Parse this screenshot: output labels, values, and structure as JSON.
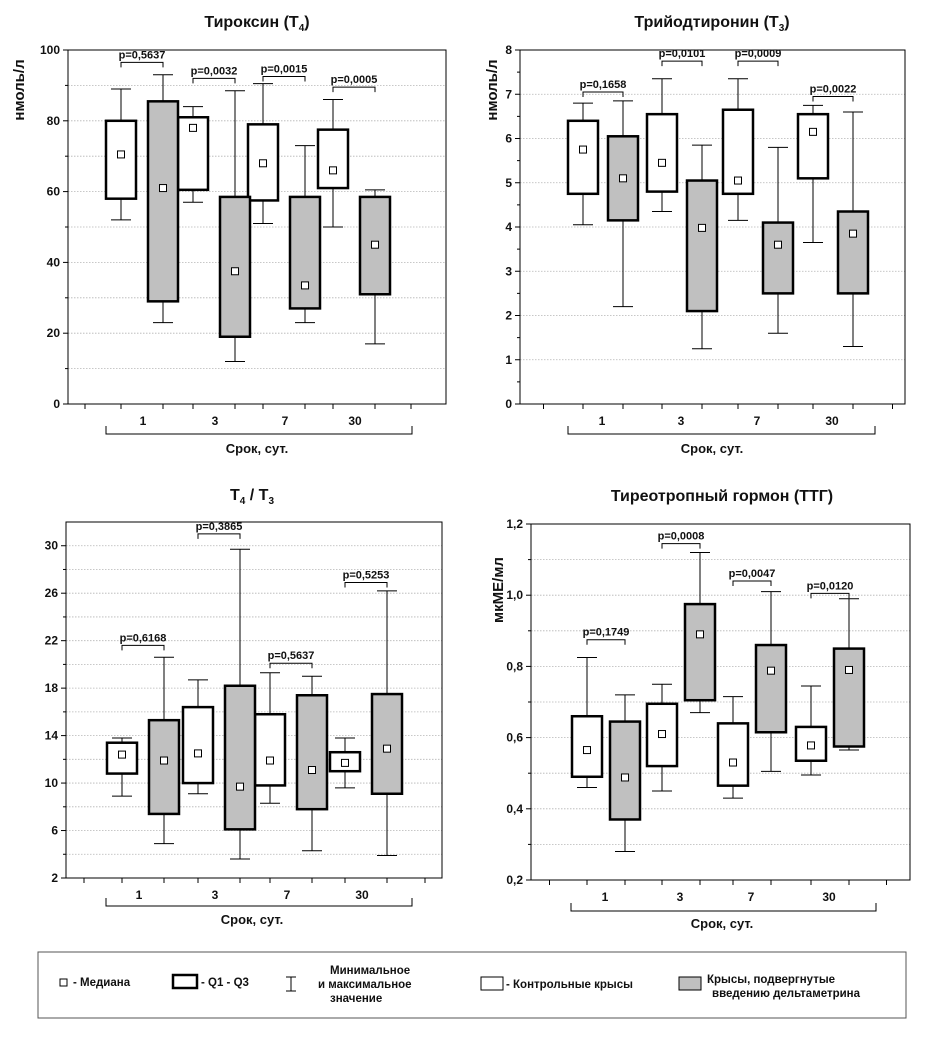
{
  "colors": {
    "control": "#ffffff",
    "treated": "#c0c0c0",
    "stroke": "#000000",
    "grid": "#b5b5b5"
  },
  "chart_data": [
    {
      "type": "box",
      "title": "Тироксин (Т",
      "title_sub": "4",
      "title_tail": ")",
      "ylabel": "нмоль/л",
      "xlabel": "Срок, сут.",
      "categories": [
        "1",
        "3",
        "7",
        "30"
      ],
      "ylim": [
        0,
        100
      ],
      "yticks": [
        0,
        20,
        40,
        60,
        80,
        100
      ],
      "grid": [
        10,
        20,
        30,
        40,
        50,
        60,
        70,
        80,
        90
      ],
      "series": [
        {
          "name": "Контрольные крысы",
          "boxes": [
            {
              "min": 52,
              "q1": 58,
              "median": 70.5,
              "q3": 80,
              "max": 89
            },
            {
              "min": 57,
              "q1": 60.5,
              "median": 78,
              "q3": 81,
              "max": 84
            },
            {
              "min": 51,
              "q1": 57.5,
              "median": 68,
              "q3": 79,
              "max": 90.5
            },
            {
              "min": 50,
              "q1": 61,
              "median": 66,
              "q3": 77.5,
              "max": 86
            }
          ]
        },
        {
          "name": "Крысы, подвергнутые введению дельтаметрина",
          "boxes": [
            {
              "min": 23,
              "q1": 29,
              "median": 61,
              "q3": 85.5,
              "max": 93
            },
            {
              "min": 12,
              "q1": 19,
              "median": 37.5,
              "q3": 58.5,
              "max": 88.5
            },
            {
              "min": 23,
              "q1": 27,
              "median": 33.5,
              "q3": 58.5,
              "max": 73
            },
            {
              "min": 17,
              "q1": 31,
              "median": 45,
              "q3": 58.5,
              "max": 60.5
            }
          ]
        }
      ],
      "pvalues": [
        {
          "label": "p=0,5637",
          "y": 96.5
        },
        {
          "label": "p=0,0032",
          "y": 92
        },
        {
          "label": "p=0,0015",
          "y": 92.5
        },
        {
          "label": "p=0,0005",
          "y": 89.5
        }
      ]
    },
    {
      "type": "box",
      "title": "Трийодтиронин (Т",
      "title_sub": "3",
      "title_tail": ")",
      "ylabel": "нмоль/л",
      "xlabel": "Срок, сут.",
      "categories": [
        "1",
        "3",
        "7",
        "30"
      ],
      "ylim": [
        0,
        8
      ],
      "yticks": [
        0,
        1,
        2,
        3,
        4,
        5,
        6,
        7,
        8
      ],
      "grid": [
        1,
        2,
        3,
        4,
        5,
        6,
        7
      ],
      "series": [
        {
          "name": "Контрольные крысы",
          "boxes": [
            {
              "min": 4.05,
              "q1": 4.75,
              "median": 5.75,
              "q3": 6.4,
              "max": 6.8
            },
            {
              "min": 4.35,
              "q1": 4.8,
              "median": 5.45,
              "q3": 6.55,
              "max": 7.35
            },
            {
              "min": 4.15,
              "q1": 4.75,
              "median": 5.05,
              "q3": 6.65,
              "max": 7.35
            },
            {
              "min": 3.65,
              "q1": 5.1,
              "median": 6.15,
              "q3": 6.55,
              "max": 6.75
            }
          ]
        },
        {
          "name": "Крысы, подвергнутые введению дельтаметрина",
          "boxes": [
            {
              "min": 2.2,
              "q1": 4.15,
              "median": 5.1,
              "q3": 6.05,
              "max": 6.85
            },
            {
              "min": 1.25,
              "q1": 2.1,
              "median": 3.98,
              "q3": 5.05,
              "max": 5.85
            },
            {
              "min": 1.6,
              "q1": 2.5,
              "median": 3.6,
              "q3": 4.1,
              "max": 5.8
            },
            {
              "min": 1.3,
              "q1": 2.5,
              "median": 3.85,
              "q3": 4.35,
              "max": 6.6
            }
          ]
        }
      ],
      "pvalues": [
        {
          "label": "p=0,1658",
          "y": 7.05
        },
        {
          "label": "p=0,0101",
          "y": 7.75
        },
        {
          "label": "p=0,0009",
          "y": 7.75
        },
        {
          "label": "p=0,0022",
          "y": 6.95
        }
      ]
    },
    {
      "type": "box",
      "title": "Т",
      "title_sub": "4",
      "title_mid": " / Т",
      "title_sub2": "3",
      "title_tail": "",
      "ylabel": "",
      "xlabel": "Срок, сут.",
      "categories": [
        "1",
        "3",
        "7",
        "30"
      ],
      "ylim": [
        2,
        32
      ],
      "yticks": [
        2,
        6,
        10,
        14,
        18,
        22,
        26,
        30
      ],
      "grid": [
        4,
        6,
        8,
        10,
        12,
        14,
        16,
        18,
        20,
        22,
        24,
        26,
        28,
        30
      ],
      "series": [
        {
          "name": "Контрольные крысы",
          "boxes": [
            {
              "min": 8.9,
              "q1": 10.8,
              "median": 12.4,
              "q3": 13.4,
              "max": 13.8
            },
            {
              "min": 9.1,
              "q1": 10,
              "median": 12.5,
              "q3": 16.4,
              "max": 18.7
            },
            {
              "min": 8.3,
              "q1": 9.8,
              "median": 11.9,
              "q3": 15.8,
              "max": 19.3
            },
            {
              "min": 9.6,
              "q1": 11,
              "median": 11.7,
              "q3": 12.6,
              "max": 13.8
            }
          ]
        },
        {
          "name": "Крысы, подвергнутые введению дельтаметрина",
          "boxes": [
            {
              "min": 4.9,
              "q1": 7.4,
              "median": 11.9,
              "q3": 15.3,
              "max": 20.6
            },
            {
              "min": 3.6,
              "q1": 6.1,
              "median": 9.7,
              "q3": 18.2,
              "max": 29.7
            },
            {
              "min": 4.3,
              "q1": 7.8,
              "median": 11.1,
              "q3": 17.4,
              "max": 19
            },
            {
              "min": 3.9,
              "q1": 9.1,
              "median": 12.9,
              "q3": 17.5,
              "max": 26.2
            }
          ]
        }
      ],
      "pvalues": [
        {
          "label": "p=0,6168",
          "y": 21.6
        },
        {
          "label": "p=0,3865",
          "y": 31
        },
        {
          "label": "p=0,5637",
          "y": 20.1
        },
        {
          "label": "p=0,5253",
          "y": 26.9
        }
      ]
    },
    {
      "type": "box",
      "title": "Тиреотропный гормон (ТТГ)",
      "title_sub": "",
      "title_tail": "",
      "ylabel": "мкМЕ/мл",
      "xlabel": "Срок, сут.",
      "categories": [
        "1",
        "3",
        "7",
        "30"
      ],
      "ylim": [
        0.2,
        1.2
      ],
      "yticks": [
        "0,2",
        "0,4",
        "0,6",
        "0,8",
        "1,0",
        "1,2"
      ],
      "ytick_values": [
        0.2,
        0.4,
        0.6,
        0.8,
        1.0,
        1.2
      ],
      "grid": [
        0.3,
        0.4,
        0.5,
        0.6,
        0.7,
        0.8,
        0.9,
        1.0,
        1.1
      ],
      "series": [
        {
          "name": "Контрольные крысы",
          "boxes": [
            {
              "min": 0.46,
              "q1": 0.49,
              "median": 0.565,
              "q3": 0.66,
              "max": 0.825
            },
            {
              "min": 0.45,
              "q1": 0.52,
              "median": 0.61,
              "q3": 0.695,
              "max": 0.75
            },
            {
              "min": 0.43,
              "q1": 0.465,
              "median": 0.53,
              "q3": 0.64,
              "max": 0.715
            },
            {
              "min": 0.495,
              "q1": 0.535,
              "median": 0.578,
              "q3": 0.63,
              "max": 0.745
            }
          ]
        },
        {
          "name": "Крысы, подвергнутые введению дельтаметрина",
          "boxes": [
            {
              "min": 0.28,
              "q1": 0.37,
              "median": 0.488,
              "q3": 0.645,
              "max": 0.72
            },
            {
              "min": 0.67,
              "q1": 0.705,
              "median": 0.89,
              "q3": 0.975,
              "max": 1.12
            },
            {
              "min": 0.505,
              "q1": 0.615,
              "median": 0.788,
              "q3": 0.86,
              "max": 1.01
            },
            {
              "min": 0.565,
              "q1": 0.575,
              "median": 0.79,
              "q3": 0.85,
              "max": 0.99
            }
          ]
        }
      ],
      "pvalues": [
        {
          "label": "p=0,1749",
          "y": 0.875
        },
        {
          "label": "p=0,0008",
          "y": 1.145
        },
        {
          "label": "p=0,0047",
          "y": 1.04
        },
        {
          "label": "p=0,0120",
          "y": 1.005
        }
      ]
    }
  ],
  "legend": {
    "median": "- Медиана",
    "q": "- Q1 - Q3",
    "minmax_1": "Минимальное",
    "minmax_2": "и максимальное",
    "minmax_3": "значение",
    "control": "- Контрольные крысы",
    "treated_1": "Крысы, подвергнутые",
    "treated_2": "введению дельтаметрина"
  }
}
